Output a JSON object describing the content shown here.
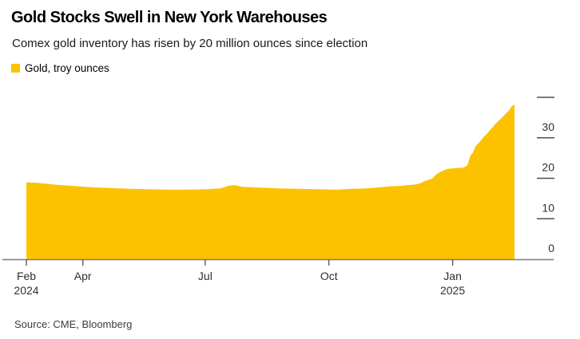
{
  "header": {
    "title": "Gold Stocks Swell in New York Warehouses",
    "subtitle": "Comex gold inventory has risen by 20 million ounces since election"
  },
  "legend": {
    "label": "Gold, troy ounces"
  },
  "source": "Source: CME, Bloomberg",
  "colors": {
    "gold": "#FCC200",
    "axis_line": "#7a7a7a",
    "x_tick": "#4d4d4d",
    "y_dash": "#4f4f4f",
    "axis_text": "#303030"
  },
  "chart_data": {
    "type": "area",
    "title": "Gold Stocks Swell in New York Warehouses",
    "subtitle": "Comex gold inventory has risen by 20 million ounces since election",
    "y_unit": "million troy ounces",
    "legend_position": "top-left",
    "grid": false,
    "x_domain": [
      "2024-02-19",
      "2025-02-16"
    ],
    "y_axis": {
      "min": 0,
      "max": 40,
      "dash_values": [
        10,
        20,
        30,
        40
      ],
      "labels": [
        {
          "value": 0,
          "text": "0"
        },
        {
          "value": 10,
          "text": "10"
        },
        {
          "value": 20,
          "text": "20"
        },
        {
          "value": 30,
          "text": "30"
        }
      ]
    },
    "x_ticks": [
      {
        "date": "2024-02-19",
        "label": "Feb",
        "sublabel": "2024"
      },
      {
        "date": "2024-04-01",
        "label": "Apr",
        "sublabel": ""
      },
      {
        "date": "2024-07-01",
        "label": "Jul",
        "sublabel": ""
      },
      {
        "date": "2024-10-01",
        "label": "Oct",
        "sublabel": ""
      },
      {
        "date": "2025-01-01",
        "label": "Jan",
        "sublabel": "2025"
      }
    ],
    "series": [
      {
        "name": "Gold, troy ounces",
        "color": "#FCC200",
        "points": [
          [
            "2024-02-19",
            19.0
          ],
          [
            "2024-02-26",
            18.9
          ],
          [
            "2024-03-04",
            18.7
          ],
          [
            "2024-03-12",
            18.4
          ],
          [
            "2024-03-25",
            18.1
          ],
          [
            "2024-04-08",
            17.8
          ],
          [
            "2024-04-22",
            17.6
          ],
          [
            "2024-05-06",
            17.4
          ],
          [
            "2024-05-20",
            17.3
          ],
          [
            "2024-06-03",
            17.2
          ],
          [
            "2024-06-17",
            17.2
          ],
          [
            "2024-07-01",
            17.3
          ],
          [
            "2024-07-12",
            17.5
          ],
          [
            "2024-07-19",
            18.2
          ],
          [
            "2024-07-23",
            18.3
          ],
          [
            "2024-07-29",
            17.9
          ],
          [
            "2024-08-12",
            17.7
          ],
          [
            "2024-08-26",
            17.5
          ],
          [
            "2024-09-09",
            17.4
          ],
          [
            "2024-09-23",
            17.3
          ],
          [
            "2024-10-07",
            17.2
          ],
          [
            "2024-10-17",
            17.4
          ],
          [
            "2024-10-28",
            17.5
          ],
          [
            "2024-11-05",
            17.7
          ],
          [
            "2024-11-15",
            18.0
          ],
          [
            "2024-11-23",
            18.1
          ],
          [
            "2024-11-29",
            18.3
          ],
          [
            "2024-12-05",
            18.5
          ],
          [
            "2024-12-09",
            18.9
          ],
          [
            "2024-12-11",
            19.3
          ],
          [
            "2024-12-14",
            19.6
          ],
          [
            "2024-12-17",
            20.0
          ],
          [
            "2024-12-20",
            21.0
          ],
          [
            "2024-12-23",
            21.6
          ],
          [
            "2024-12-28",
            22.3
          ],
          [
            "2025-01-03",
            22.5
          ],
          [
            "2025-01-09",
            22.6
          ],
          [
            "2025-01-12",
            23.2
          ],
          [
            "2025-01-14",
            25.5
          ],
          [
            "2025-01-16",
            26.3
          ],
          [
            "2025-01-18",
            27.9
          ],
          [
            "2025-01-21",
            28.9
          ],
          [
            "2025-01-24",
            30.2
          ],
          [
            "2025-01-27",
            31.2
          ],
          [
            "2025-02-02",
            33.5
          ],
          [
            "2025-02-08",
            35.4
          ],
          [
            "2025-02-12",
            36.8
          ],
          [
            "2025-02-14",
            37.8
          ],
          [
            "2025-02-16",
            38.2
          ]
        ]
      }
    ]
  }
}
